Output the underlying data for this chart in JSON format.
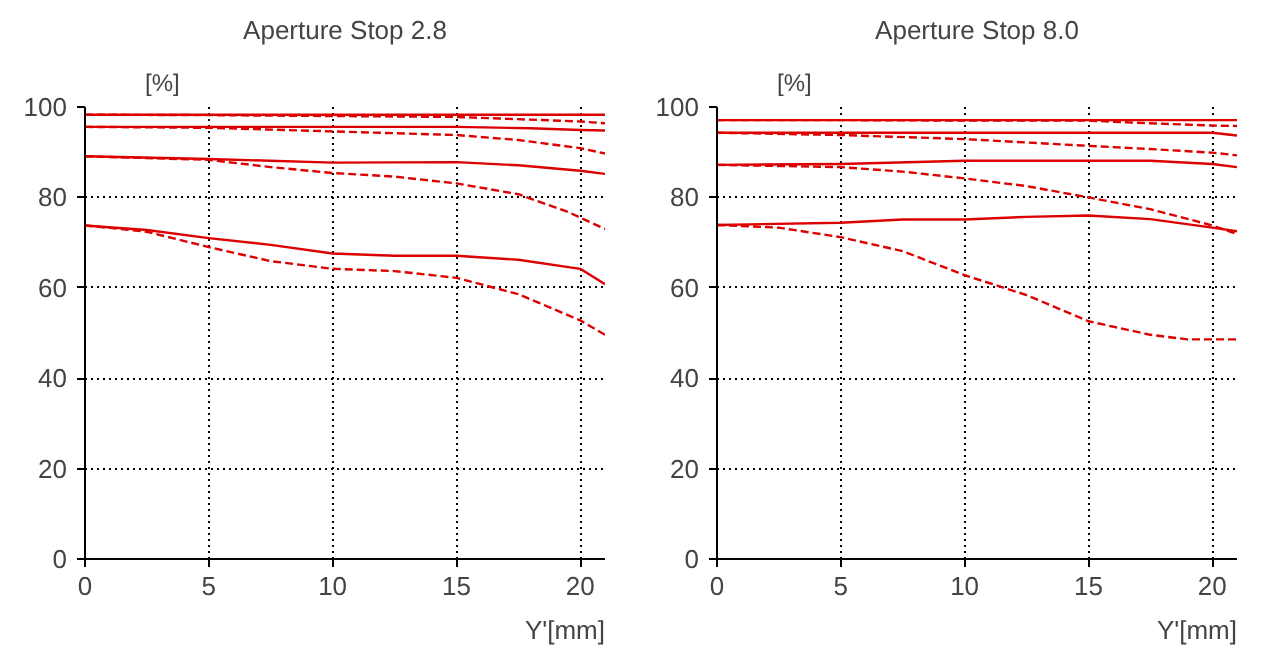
{
  "chart_data": [
    {
      "type": "line",
      "title": "Aperture Stop 2.8",
      "xlabel": "Y'[mm]",
      "ylabel": "[%]",
      "xlim": [
        0,
        21
      ],
      "ylim": [
        0,
        100
      ],
      "xticks": [
        0,
        5,
        10,
        15,
        20
      ],
      "yticks": [
        0,
        20,
        40,
        60,
        80,
        100
      ],
      "grid": true,
      "series": [
        {
          "color": "#dd0000",
          "line_style": "solid",
          "x": [
            0,
            5,
            10,
            15,
            20,
            21
          ],
          "values": [
            98.3,
            98.3,
            98.3,
            98.3,
            98.3,
            98.3
          ]
        },
        {
          "color": "#dd0000",
          "line_style": "dashed",
          "x": [
            0,
            5,
            10,
            15,
            17,
            20,
            21
          ],
          "values": [
            98.3,
            98.2,
            98,
            97.8,
            97.4,
            96.8,
            96.4
          ]
        },
        {
          "color": "#dd0000",
          "line_style": "solid",
          "x": [
            0,
            5,
            10,
            15,
            18,
            20,
            21
          ],
          "values": [
            95.6,
            95.6,
            95.6,
            95.6,
            95.3,
            94.9,
            94.8
          ]
        },
        {
          "color": "#dd0000",
          "line_style": "dashed",
          "x": [
            0,
            5,
            10,
            15,
            17.5,
            20,
            21
          ],
          "values": [
            95.6,
            95.4,
            94.6,
            93.8,
            92.7,
            90.9,
            89.7
          ]
        },
        {
          "color": "#dd0000",
          "line_style": "solid",
          "x": [
            0,
            5,
            10,
            15,
            17.5,
            20,
            21
          ],
          "values": [
            89.1,
            88.5,
            87.7,
            87.8,
            87.1,
            85.9,
            85.2
          ]
        },
        {
          "color": "#dd0000",
          "line_style": "dashed",
          "x": [
            0,
            5,
            7.5,
            10,
            12.5,
            15,
            17.5,
            19.5,
            21
          ],
          "values": [
            89.1,
            88.3,
            86.7,
            85.4,
            84.6,
            83.1,
            80.7,
            76.8,
            73
          ]
        },
        {
          "color": "#dd0000",
          "line_style": "solid",
          "x": [
            0,
            2.5,
            5,
            7.5,
            10,
            12.5,
            15,
            17.5,
            20,
            21
          ],
          "values": [
            73.8,
            72.8,
            71,
            69.5,
            67.6,
            67.1,
            67.1,
            66.2,
            64.2,
            60.8
          ]
        },
        {
          "color": "#dd0000",
          "line_style": "dashed",
          "x": [
            0,
            2.5,
            5,
            7.5,
            10,
            12.5,
            15,
            17.5,
            20,
            21
          ],
          "values": [
            73.8,
            72.4,
            69,
            65.9,
            64.2,
            63.7,
            62.2,
            58.6,
            52.8,
            49.6
          ]
        }
      ]
    },
    {
      "type": "line",
      "title": "Aperture Stop 8.0",
      "xlabel": "Y'[mm]",
      "ylabel": "[%]",
      "xlim": [
        0,
        21
      ],
      "ylim": [
        0,
        100
      ],
      "xticks": [
        0,
        5,
        10,
        15,
        20
      ],
      "yticks": [
        0,
        20,
        40,
        60,
        80,
        100
      ],
      "grid": true,
      "series": [
        {
          "color": "#dd0000",
          "line_style": "solid",
          "x": [
            0,
            5,
            10,
            15,
            20,
            21
          ],
          "values": [
            97.1,
            97.1,
            97.1,
            97.1,
            97.1,
            97.1
          ]
        },
        {
          "color": "#dd0000",
          "line_style": "dashed",
          "x": [
            0,
            5,
            10,
            15,
            17,
            20,
            21
          ],
          "values": [
            97.1,
            97.1,
            97,
            97,
            96.5,
            95.9,
            95.8
          ]
        },
        {
          "color": "#dd0000",
          "line_style": "solid",
          "x": [
            0,
            5,
            10,
            15,
            20,
            21
          ],
          "values": [
            94.3,
            94.3,
            94.3,
            94.3,
            94.3,
            93.7
          ]
        },
        {
          "color": "#dd0000",
          "line_style": "dashed",
          "x": [
            0,
            5,
            10,
            15,
            17.5,
            20,
            21
          ],
          "values": [
            94.3,
            93.8,
            92.9,
            91.4,
            90.7,
            89.9,
            89.3
          ]
        },
        {
          "color": "#dd0000",
          "line_style": "solid",
          "x": [
            0,
            5,
            10,
            15,
            17.5,
            20,
            21
          ],
          "values": [
            87.2,
            87.4,
            88.1,
            88.1,
            88.1,
            87.4,
            86.7
          ]
        },
        {
          "color": "#dd0000",
          "line_style": "dashed",
          "x": [
            0,
            5,
            7.5,
            10,
            12.5,
            15,
            17.5,
            20,
            21
          ],
          "values": [
            87.2,
            86.7,
            85.7,
            84.2,
            82.5,
            80,
            77.4,
            73.8,
            71.9
          ]
        },
        {
          "color": "#dd0000",
          "line_style": "solid",
          "x": [
            0,
            5,
            7.5,
            10,
            12.5,
            15,
            17.5,
            20,
            21
          ],
          "values": [
            73.9,
            74.4,
            75.1,
            75.1,
            75.7,
            76,
            75.2,
            73.3,
            72.5
          ]
        },
        {
          "color": "#dd0000",
          "line_style": "dashed",
          "x": [
            0,
            2.5,
            5,
            7.5,
            10,
            12.5,
            15,
            17.5,
            19,
            21
          ],
          "values": [
            73.9,
            73.3,
            71.2,
            68.1,
            62.8,
            58.4,
            52.6,
            49.6,
            48.6,
            48.6
          ]
        }
      ]
    }
  ]
}
